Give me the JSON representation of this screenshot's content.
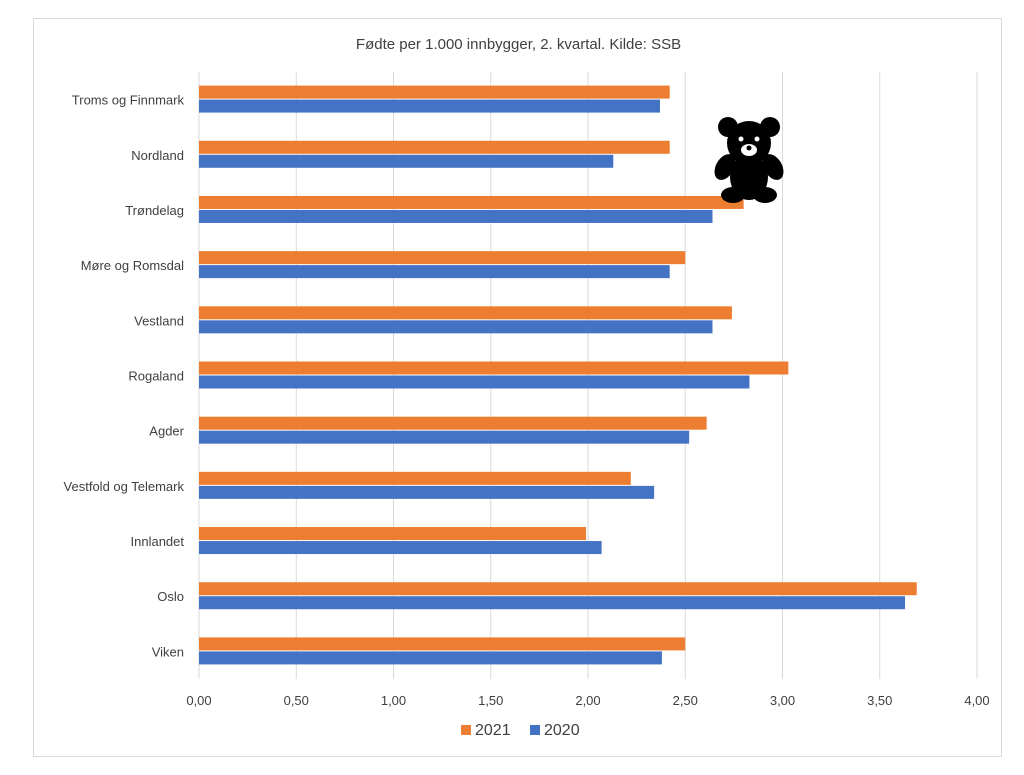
{
  "chart_data": {
    "type": "bar",
    "orientation": "horizontal",
    "title": "Fødte per 1.000 innbygger, 2. kvartal. Kilde: SSB",
    "categories": [
      "Troms og Finnmark",
      "Nordland",
      "Trøndelag",
      "Møre og Romsdal",
      "Vestland",
      "Rogaland",
      "Agder",
      "Vestfold og Telemark",
      "Innlandet",
      "Oslo",
      "Viken"
    ],
    "series": [
      {
        "name": "2021",
        "color": "#ED7D31",
        "values": [
          2.42,
          2.42,
          2.8,
          2.5,
          2.74,
          3.03,
          2.61,
          2.22,
          1.99,
          3.69,
          2.5
        ]
      },
      {
        "name": "2020",
        "color": "#4472C4",
        "values": [
          2.37,
          2.13,
          2.64,
          2.42,
          2.64,
          2.83,
          2.52,
          2.34,
          2.07,
          3.63,
          2.38
        ]
      }
    ],
    "xlim": [
      0,
      4
    ],
    "xticks": [
      "0,00",
      "0,50",
      "1,00",
      "1,50",
      "2,00",
      "2,50",
      "3,00",
      "3,50",
      "4,00"
    ],
    "grid": true,
    "legend_position": "bottom"
  },
  "decoration": {
    "icon": "teddy-bear-icon"
  }
}
